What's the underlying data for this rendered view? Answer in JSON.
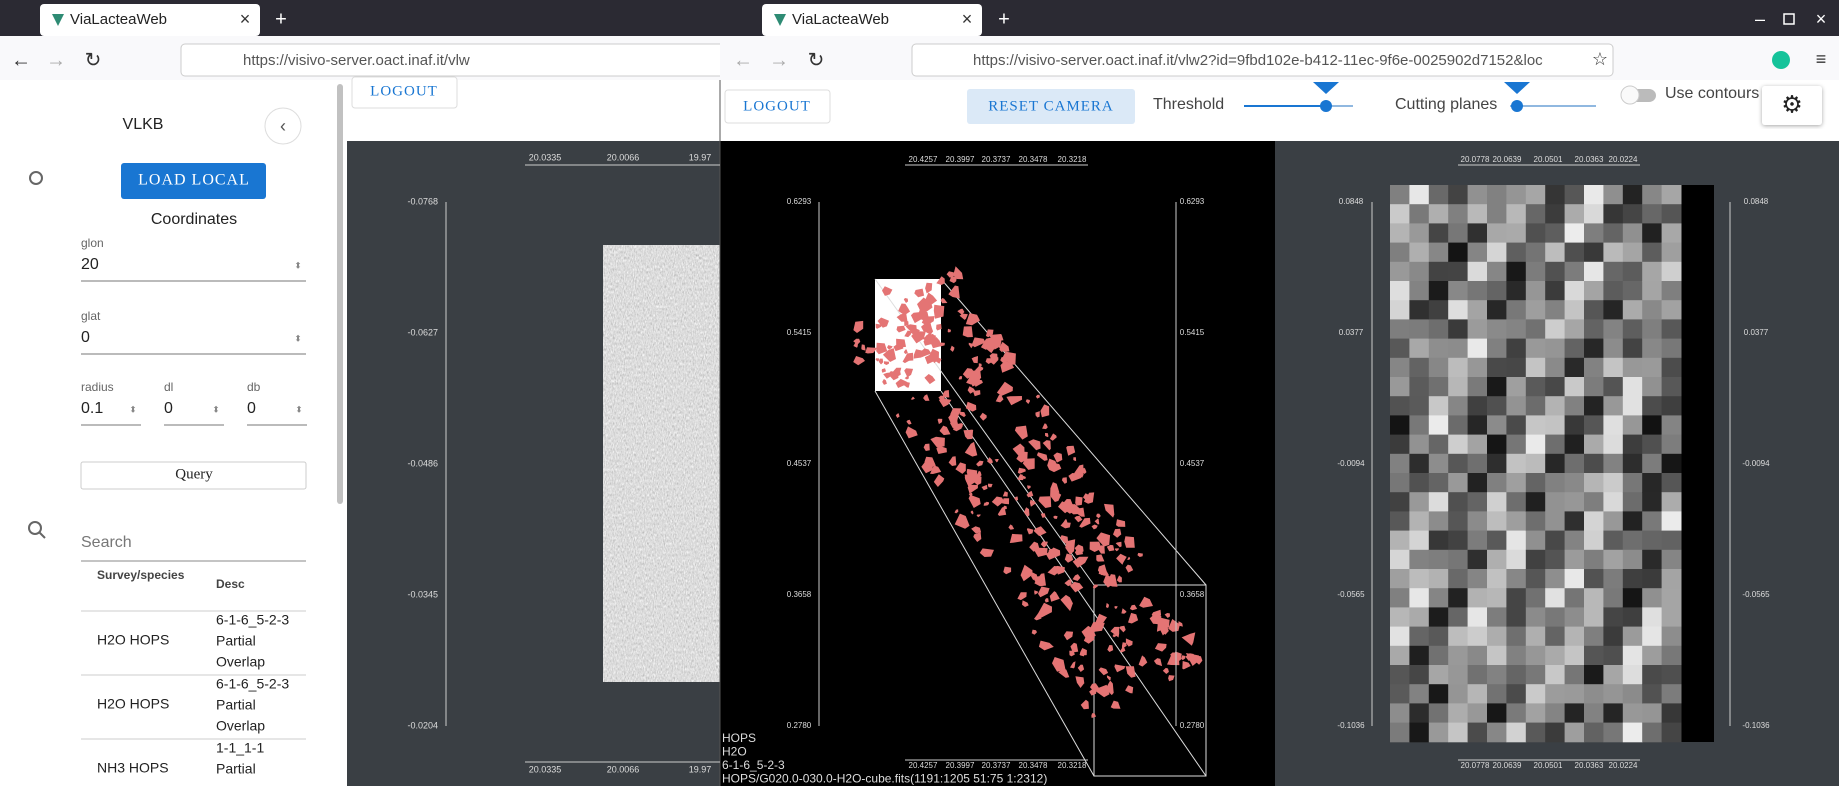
{
  "left_window": {
    "tab_title": "ViaLacteaWeb",
    "url": "https://visivo-server.oact.inaf.it/vlw",
    "logout": "LOGOUT",
    "sidebar": {
      "title": "VLKB",
      "load_local": "LOAD LOCAL",
      "coordinates": "Coordinates",
      "fields": [
        {
          "label": "glon",
          "value": "20"
        },
        {
          "label": "glat",
          "value": "0"
        },
        {
          "label": "radius",
          "value": "0.1"
        },
        {
          "label": "dl",
          "value": "0"
        },
        {
          "label": "db",
          "value": "0"
        }
      ],
      "query": "Query",
      "search": "Search",
      "table": {
        "headers": [
          "Survey/species",
          "Desc"
        ],
        "rows": [
          {
            "name": "H2O HOPS",
            "desc": [
              "6-1-6_5-2-3",
              "Partial",
              "Overlap"
            ]
          },
          {
            "name": "H2O HOPS",
            "desc": [
              "6-1-6_5-2-3",
              "Partial",
              "Overlap"
            ]
          },
          {
            "name": "NH3 HOPS",
            "desc": [
              "1-1_1-1",
              "Partial"
            ]
          }
        ]
      }
    },
    "viewer": {
      "top_ticks": [
        "20.0335",
        "20.0066",
        "19.97"
      ],
      "left_ticks": [
        "-0.0768",
        "-0.0627",
        "-0.0486",
        "-0.0345",
        "-0.0204"
      ],
      "bottom_ticks": [
        "20.0335",
        "20.0066",
        "19.97"
      ]
    }
  },
  "right_window": {
    "tab_title": "ViaLacteaWeb",
    "url": "https://visivo-server.oact.inaf.it/vlw2?id=9fbd102e-b412-11ec-9f6e-0025902d7152&loc",
    "toolbar": {
      "logout": "LOGOUT",
      "reset_camera": "RESET CAMERA",
      "threshold": "Threshold",
      "cutting_planes": "Cutting planes",
      "use_contours": "Use contours"
    },
    "cube_view": {
      "top_ticks": [
        "20.4257",
        "20.3997",
        "20.3737",
        "20.3478",
        "20.3218"
      ],
      "left_ticks": [
        "0.6293",
        "0.5415",
        "0.4537",
        "0.3658",
        "0.2780"
      ],
      "right_ticks": [
        "0.6293",
        "0.5415",
        "0.4537",
        "0.3658",
        "0.2780"
      ],
      "bottom_ticks": [
        "20.4257",
        "20.3997",
        "20.3737",
        "20.3478",
        "20.3218"
      ],
      "info": [
        "HOPS",
        "H2O",
        "6-1-6_5-2-3",
        "HOPS/G020.0-030.0-H2O-cube.fits(1191:1205 51:75 1:2312)"
      ]
    },
    "slice_view": {
      "top_ticks": [
        "20.0778",
        "20.0639",
        "20.0501",
        "20.0363",
        "20.0224"
      ],
      "left_ticks": [
        "0.0848",
        "0.0377",
        "-0.0094",
        "-0.0565",
        "-0.1036"
      ],
      "right_ticks": [
        "0.0848",
        "0.0377",
        "-0.0094",
        "-0.0565",
        "-0.1036"
      ],
      "bottom_ticks": [
        "20.0778",
        "20.0639",
        "20.0501",
        "20.0363",
        "20.0224"
      ]
    }
  }
}
